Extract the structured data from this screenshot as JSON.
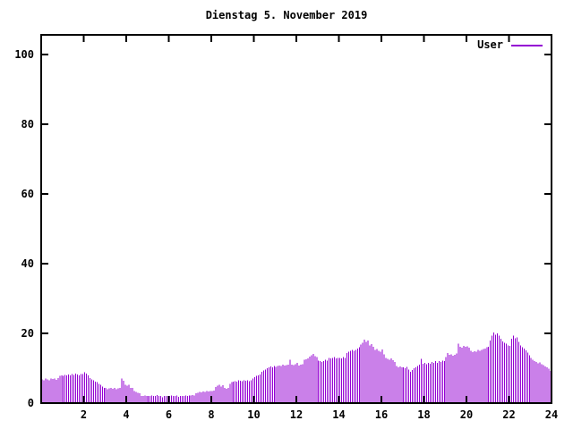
{
  "window": {
    "background_color": "#ffffff"
  },
  "chart_data": {
    "type": "bar",
    "subtype": "impulses-time-series",
    "title": "Dienstag 5. November 2019",
    "legend": {
      "label": "User",
      "position": "top-right-inside"
    },
    "xlabel": "",
    "ylabel": "",
    "xlim": [
      0,
      24
    ],
    "ylim": [
      0,
      105
    ],
    "x_ticks": [
      2,
      4,
      6,
      8,
      10,
      12,
      14,
      16,
      18,
      20,
      22,
      24
    ],
    "y_ticks": [
      0,
      20,
      40,
      60,
      80,
      100
    ],
    "grid": false,
    "tick_mirroring": true,
    "interval_minutes": 5,
    "bar_color": "#9400d3",
    "axis_color": "#000000",
    "values": [
      6.8,
      6.5,
      7,
      6.8,
      6.6,
      7,
      6.9,
      7,
      6.7,
      7.2,
      7.8,
      8,
      7.8,
      8.1,
      8,
      8.2,
      8,
      8.3,
      8.1,
      8.4,
      8.2,
      8,
      8.3,
      8.3,
      8.8,
      8.5,
      8,
      7.2,
      6.8,
      6.5,
      6.2,
      6,
      5.5,
      5.2,
      4.8,
      4.4,
      4.3,
      4,
      4.2,
      4.4,
      4.1,
      4.3,
      4,
      4.2,
      4.4,
      7,
      6.4,
      5.2,
      5,
      5.2,
      4.3,
      4.3,
      3.4,
      3.2,
      3,
      2.8,
      2.1,
      2,
      2.2,
      2,
      2.1,
      2,
      2.2,
      2.1,
      2,
      2.3,
      2,
      2.1,
      1.7,
      2,
      2.1,
      2,
      2,
      2.2,
      2.1,
      2,
      2.2,
      1.8,
      2,
      2.1,
      2,
      2.2,
      2.1,
      2.2,
      2.2,
      2.3,
      2.2,
      2.8,
      3,
      3.2,
      3.1,
      3.3,
      3.2,
      3.4,
      3.3,
      3.4,
      3.4,
      3.6,
      4.6,
      5,
      5.3,
      4.7,
      5.1,
      4.3,
      4.1,
      4.4,
      5.5,
      6,
      6.1,
      6.3,
      6.2,
      6.5,
      6.4,
      6.3,
      6.5,
      6.4,
      6.6,
      6.3,
      6.5,
      7,
      7.5,
      7.8,
      8,
      8.2,
      9,
      9.3,
      9.6,
      10,
      10.2,
      10.5,
      10.3,
      10.6,
      10.4,
      10.6,
      10.8,
      10.7,
      11,
      10.8,
      10.9,
      11,
      12.5,
      11,
      10.9,
      11.2,
      11.6,
      10.8,
      11,
      11.2,
      12.4,
      12.6,
      12.8,
      13.3,
      13.7,
      14.1,
      13.5,
      13.2,
      12.2,
      12,
      11.8,
      12,
      12.5,
      12.2,
      13,
      12.8,
      13,
      13.2,
      12.8,
      13,
      13,
      12.8,
      13.2,
      13,
      14.3,
      14.8,
      15,
      15.2,
      15,
      15.3,
      15.6,
      16,
      16.8,
      17.3,
      18.2,
      17.6,
      17.9,
      16.6,
      16.9,
      16.2,
      15.3,
      15.5,
      15,
      14.8,
      15.4,
      14,
      13,
      12.7,
      12.5,
      12.8,
      12.3,
      11.8,
      10.7,
      10.3,
      10.5,
      10.2,
      10.2,
      10,
      10.4,
      9.6,
      9,
      9.5,
      10,
      10.3,
      10.7,
      11,
      12.7,
      11.3,
      11.5,
      11.2,
      11.6,
      11.3,
      11.8,
      11.5,
      12,
      11.6,
      12,
      11.8,
      12.2,
      12,
      13.2,
      14.4,
      13.8,
      14,
      13.6,
      13.9,
      14.2,
      17.1,
      16.2,
      15.9,
      16.4,
      16.1,
      16.3,
      15.9,
      15,
      14.6,
      14.9,
      14.7,
      15.2,
      15,
      15.3,
      15.5,
      15.7,
      16,
      16.2,
      17.9,
      19.4,
      20.2,
      19.6,
      20,
      19.3,
      18.4,
      17.7,
      17.3,
      17,
      16.6,
      16.4,
      18.4,
      19.3,
      18.6,
      18.9,
      17.6,
      16.6,
      16,
      15.6,
      15.1,
      14.5,
      13.7,
      13,
      12.5,
      12.1,
      11.8,
      11.4,
      11.7,
      11.1,
      10.9,
      10.5,
      10.2,
      9.9,
      9.2
    ]
  }
}
